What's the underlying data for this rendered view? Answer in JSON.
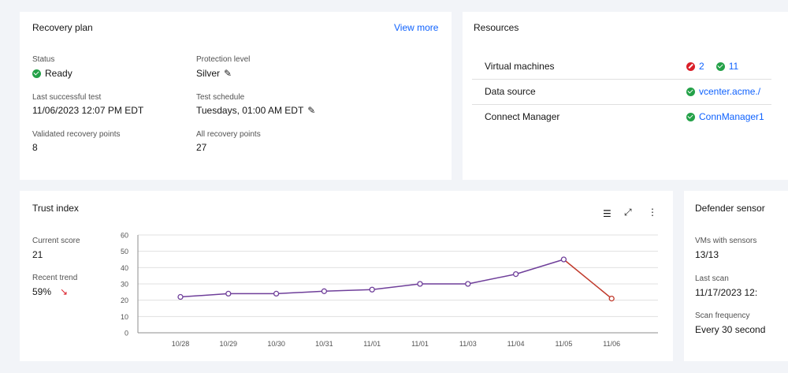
{
  "recovery_plan": {
    "title": "Recovery plan",
    "view_more": "View more",
    "status_label": "Status",
    "status_value": "Ready",
    "protection_label": "Protection level",
    "protection_value": "Silver",
    "last_test_label": "Last successful test",
    "last_test_value": "11/06/2023 12:07 PM EDT",
    "schedule_label": "Test schedule",
    "schedule_value": "Tuesdays, 01:00 AM EDT",
    "validated_label": "Validated recovery points",
    "validated_value": "8",
    "all_points_label": "All recovery points",
    "all_points_value": "27"
  },
  "resources": {
    "title": "Resources",
    "rows": [
      {
        "name": "Virtual machines",
        "error_count": "2",
        "ok_count": "11"
      },
      {
        "name": "Data source",
        "value": "vcenter.acme./"
      },
      {
        "name": "Connect Manager",
        "value": "ConnManager1"
      }
    ]
  },
  "trust_index": {
    "title": "Trust index",
    "current_label": "Current score",
    "current_value": "21",
    "trend_label": "Recent trend",
    "trend_value": "59%",
    "toolbar_icons": [
      "table-view-icon",
      "maximize-icon",
      "overflow-menu-icon"
    ]
  },
  "defender": {
    "title": "Defender sensor",
    "vms_label": "VMs with sensors",
    "vms_value": "13/13",
    "scan_label": "Last scan",
    "scan_value": "11/17/2023 12:",
    "freq_label": "Scan frequency",
    "freq_value": "Every 30 second"
  },
  "colors": {
    "ok": "#24a148",
    "error": "#da1e28",
    "link": "#0f62fe",
    "line": "#6f3f9a",
    "drop": "#c0392b"
  },
  "chart_data": {
    "type": "line",
    "x": [
      "10/28",
      "10/29",
      "10/30",
      "10/31",
      "11/01",
      "11/01",
      "11/03",
      "11/04",
      "11/05",
      "11/06"
    ],
    "values": [
      22,
      24,
      24,
      25.5,
      26.5,
      30,
      30,
      36,
      45,
      21
    ],
    "yticks": [
      0,
      10,
      20,
      30,
      40,
      50,
      60
    ],
    "ylim": [
      0,
      60
    ],
    "grid": true,
    "title": "",
    "xlabel": "",
    "ylabel": ""
  }
}
